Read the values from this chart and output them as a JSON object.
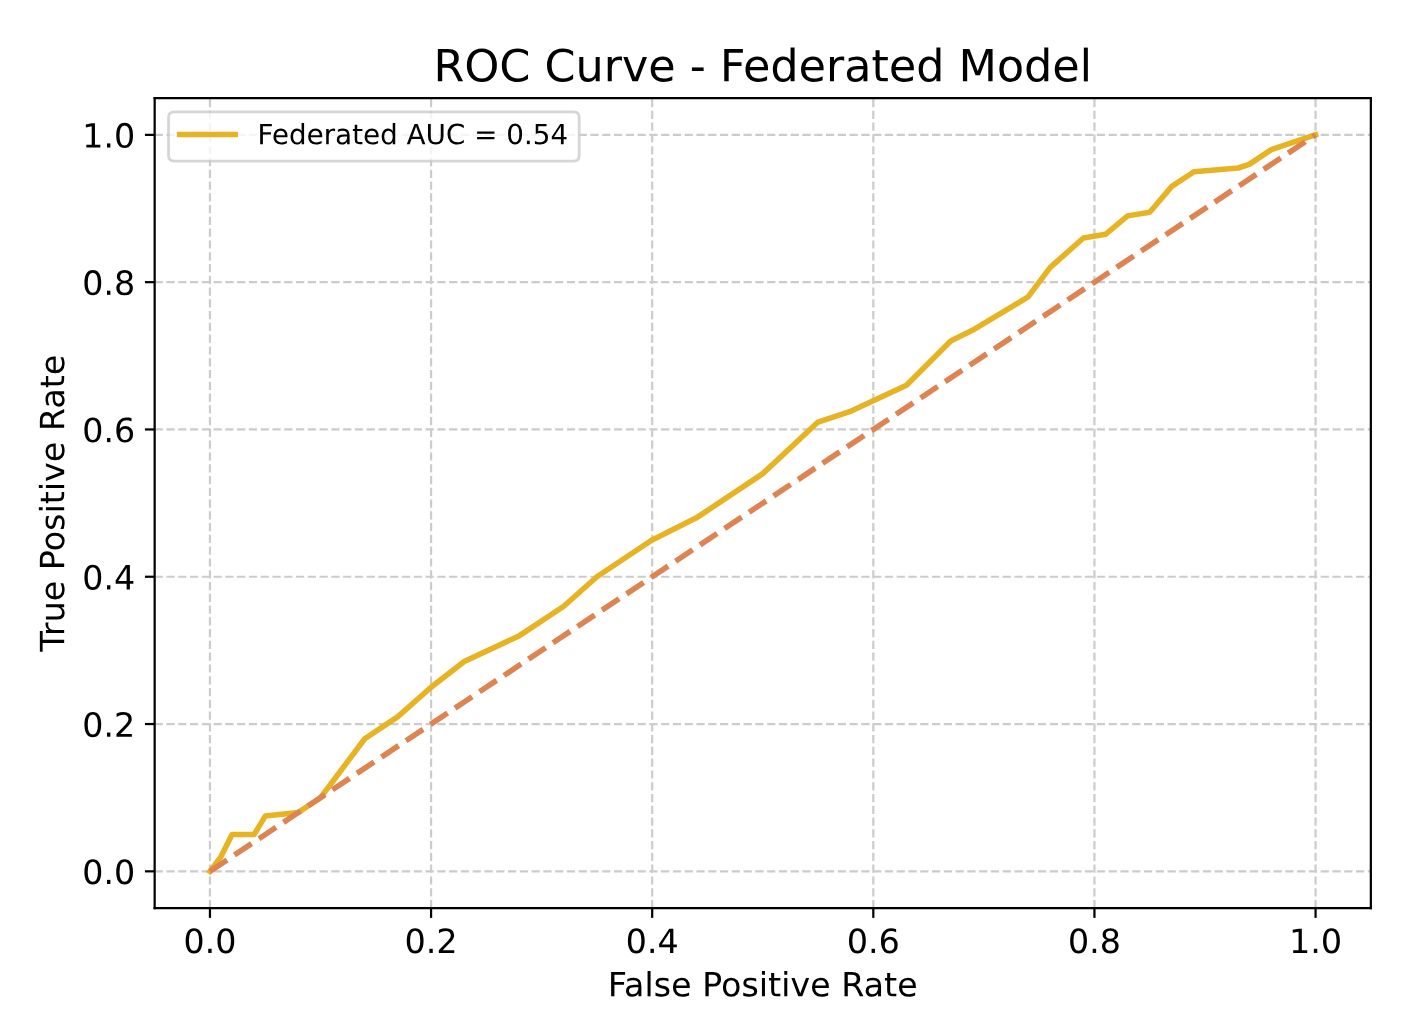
{
  "chart_data": {
    "type": "line",
    "title": "ROC Curve - Federated Model",
    "xlabel": "False Positive Rate",
    "ylabel": "True Positive Rate",
    "series": [
      {
        "name": "Federated AUC = 0.54",
        "color": "#e8b323",
        "line_style": "solid",
        "x": [
          0,
          0.01,
          0.02,
          0.04,
          0.05,
          0.08,
          0.09,
          0.1,
          0.11,
          0.14,
          0.17,
          0.2,
          0.23,
          0.28,
          0.32,
          0.35,
          0.39,
          0.4,
          0.44,
          0.5,
          0.55,
          0.58,
          0.63,
          0.67,
          0.69,
          0.74,
          0.76,
          0.79,
          0.81,
          0.83,
          0.85,
          0.87,
          0.89,
          0.93,
          0.94,
          0.96,
          0.98,
          1
        ],
        "values": [
          0,
          0.02,
          0.05,
          0.05,
          0.075,
          0.08,
          0.09,
          0.1,
          0.12,
          0.18,
          0.21,
          0.25,
          0.285,
          0.32,
          0.36,
          0.4,
          0.44,
          0.45,
          0.48,
          0.54,
          0.61,
          0.625,
          0.66,
          0.72,
          0.735,
          0.78,
          0.82,
          0.86,
          0.865,
          0.89,
          0.895,
          0.93,
          0.95,
          0.955,
          0.96,
          0.98,
          0.99,
          1
        ]
      },
      {
        "color": "#dd8452",
        "line_style": "dashed",
        "x": [
          0,
          1
        ],
        "values": [
          0,
          1
        ]
      }
    ],
    "xlim": [
      -0.05,
      1.05
    ],
    "ylim": [
      -0.05,
      1.05
    ],
    "xticks": [
      {
        "value": 0,
        "label": "0.0"
      },
      0.2,
      0.4,
      0.6,
      0.8,
      {
        "value": 1,
        "label": "1.0"
      }
    ],
    "yticks": [
      {
        "value": 0,
        "label": "0.0"
      },
      0.2,
      0.4,
      0.6,
      0.8,
      {
        "value": 1,
        "label": "1.0"
      }
    ],
    "grid": true,
    "legend": "top left",
    "marker": "none"
  }
}
